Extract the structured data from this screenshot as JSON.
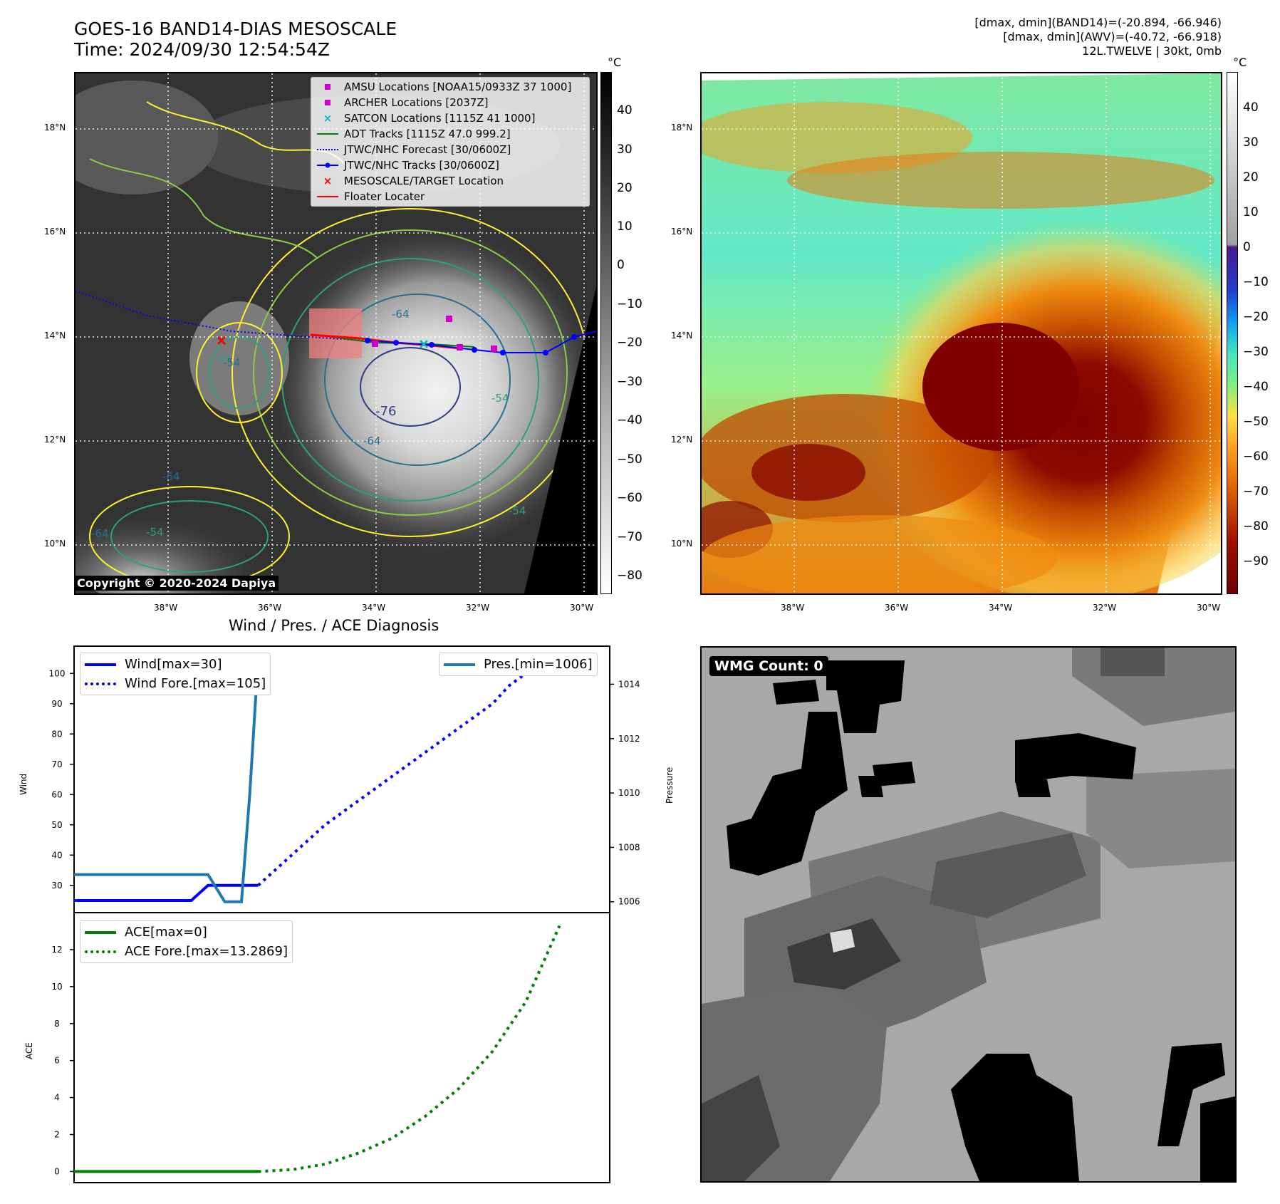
{
  "header": {
    "title_line1": "GOES-16 BAND14-DIAS MESOSCALE",
    "title_line2": "Time: 2024/09/30 12:54:54Z",
    "info_line1": "[dmax, dmin](BAND14)=(-20.894, -66.946)",
    "info_line2": "[dmax, dmin](AWV)=(-40.72, -66.918)",
    "info_line3": "12L.TWELVE | 30kt, 0mb"
  },
  "ir_panel": {
    "lat_labels": [
      "18°N",
      "16°N",
      "14°N",
      "12°N",
      "10°N"
    ],
    "lon_labels": [
      "38°W",
      "36°W",
      "34°W",
      "32°W",
      "30°W"
    ],
    "colorbar_unit": "°C",
    "colorbar_ticks": [
      "40",
      "30",
      "20",
      "10",
      "0",
      "−10",
      "−20",
      "−30",
      "−40",
      "−50",
      "−60",
      "−70",
      "−80"
    ],
    "copyright": "Copyright © 2020-2024 Dapiya",
    "contour_labels": [
      "-64",
      "-54",
      "-64",
      "-76",
      "-64",
      "-54",
      "-64",
      "-54",
      "-54",
      "-64"
    ],
    "legend": [
      {
        "label": "AMSU Locations [NOAA15/0933Z 37 1000]",
        "symbol": "magenta-square"
      },
      {
        "label": "ARCHER Locations [2037Z]",
        "symbol": "magenta-square"
      },
      {
        "label": "SATCON Locations [1115Z 41 1000]",
        "symbol": "cyan-x"
      },
      {
        "label": "ADT Tracks [1115Z 47.0 999.2]",
        "symbol": "green-line"
      },
      {
        "label": "JTWC/NHC Forecast [30/0600Z]",
        "symbol": "blue-dotted"
      },
      {
        "label": "JTWC/NHC Tracks [30/0600Z]",
        "symbol": "blue-dot-line"
      },
      {
        "label": "MESOSCALE/TARGET Location",
        "symbol": "red-x"
      },
      {
        "label": "Floater Locater",
        "symbol": "red-line"
      }
    ]
  },
  "awv_panel": {
    "lat_labels": [
      "18°N",
      "16°N",
      "14°N",
      "12°N",
      "10°N"
    ],
    "lon_labels": [
      "38°W",
      "36°W",
      "34°W",
      "32°W",
      "30°W"
    ],
    "colorbar_unit": "°C",
    "colorbar_ticks": [
      "40",
      "30",
      "20",
      "10",
      "0",
      "−10",
      "−20",
      "−30",
      "−40",
      "−50",
      "−60",
      "−70",
      "−80",
      "−90"
    ]
  },
  "wmg_panel": {
    "label": "WMG Count: 0"
  },
  "colors": {
    "wind": "#0000ff",
    "pressure": "#1f77b4",
    "ace": "#008000",
    "track": "#ff0000"
  },
  "chart_data": [
    {
      "type": "line",
      "title": "Wind / Pres. / ACE Diagnosis",
      "ylabel": "Wind",
      "y2label": "Pressure",
      "ylim": [
        21,
        109
      ],
      "y2lim": [
        1005.6,
        1015.4
      ],
      "yticks": [
        30,
        40,
        50,
        60,
        70,
        80,
        90,
        100
      ],
      "y2ticks": [
        1006,
        1008,
        1010,
        1012,
        1014
      ],
      "xlim": [
        0,
        32
      ],
      "series": [
        {
          "name": "Wind[max=30]",
          "axis": "left",
          "style": "solid",
          "x": [
            0,
            7,
            8,
            11
          ],
          "y": [
            25,
            25,
            30,
            30
          ]
        },
        {
          "name": "Wind Fore.[max=105]",
          "axis": "left",
          "style": "dotted",
          "x": [
            11,
            13,
            15,
            17,
            19,
            21,
            23,
            25,
            26,
            27,
            28,
            29
          ],
          "y": [
            30,
            40,
            50,
            58,
            66,
            74,
            82,
            90,
            96,
            100,
            105,
            105
          ]
        },
        {
          "name": "Pres.[min=1006]",
          "axis": "right",
          "style": "solid",
          "x": [
            0,
            8,
            9,
            10,
            10.5,
            11
          ],
          "y": [
            1007,
            1007,
            1006,
            1006,
            1010,
            1015
          ]
        }
      ]
    },
    {
      "type": "line",
      "ylabel": "ACE",
      "ylim": [
        -0.6,
        14
      ],
      "yticks": [
        0,
        2,
        4,
        6,
        8,
        10,
        12
      ],
      "xlim": [
        0,
        32
      ],
      "series": [
        {
          "name": "ACE[max=0]",
          "style": "solid",
          "x": [
            0,
            11
          ],
          "y": [
            0,
            0
          ]
        },
        {
          "name": "ACE Fore.[max=13.2869]",
          "style": "dotted",
          "x": [
            11,
            13,
            15,
            17,
            19,
            21,
            23,
            25,
            27,
            29
          ],
          "y": [
            0,
            0.1,
            0.4,
            1.0,
            1.8,
            3.0,
            4.5,
            6.5,
            9.2,
            13.2869
          ]
        }
      ]
    }
  ]
}
